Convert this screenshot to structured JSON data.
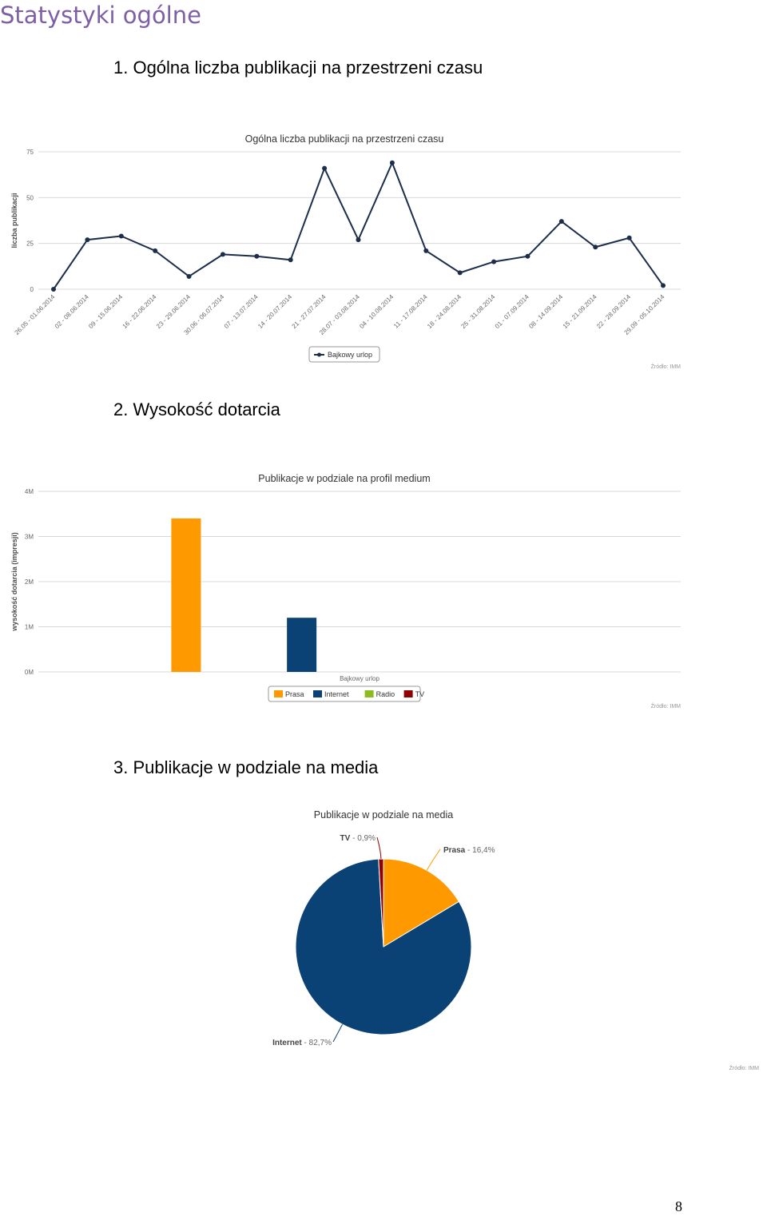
{
  "page_title": "Statystyki ogólne",
  "page_number": "8",
  "sections": [
    {
      "heading": "1. Ogólna liczba publikacji na przestrzeni czasu"
    },
    {
      "heading": "2. Wysokość dotarcia"
    },
    {
      "heading": "3. Publikacje w podziale na media"
    }
  ],
  "chart_data": [
    {
      "type": "line",
      "title": "Ogólna liczba publikacji na przestrzeni czasu",
      "xlabel": "",
      "ylabel": "liczba publikacji",
      "ylim": [
        0,
        75
      ],
      "yticks": [
        "0",
        "25",
        "50",
        "75"
      ],
      "categories": [
        "26.05 - 01.06.2014",
        "02 - 08.06.2014",
        "09 - 15.06.2014",
        "16 - 22.06.2014",
        "23 - 29.06.2014",
        "30.06 - 06.07.2014",
        "07 - 13.07.2014",
        "14 - 20.07.2014",
        "21 - 27.07.2014",
        "28.07 - 03.08.2014",
        "04 - 10.08.2014",
        "11 - 17.08.2014",
        "18 - 24.08.2014",
        "25 - 31.08.2014",
        "01 - 07.09.2014",
        "08 - 14.09.2014",
        "15 - 21.09.2014",
        "22 - 28.09.2014",
        "29.09 - 05.10.2014"
      ],
      "series": [
        {
          "name": "Bajkowy urlop",
          "color": "#1c2e4a",
          "values": [
            0,
            27,
            29,
            21,
            7,
            19,
            18,
            16,
            66,
            27,
            69,
            21,
            9,
            15,
            18,
            37,
            23,
            28,
            2
          ]
        }
      ],
      "grid": true,
      "legend_position": "bottom-center",
      "credit": "Źródło: IMM"
    },
    {
      "type": "bar",
      "title": "Publikacje w podziale na profil medium",
      "xlabel": "",
      "ylabel": "wysokość dotarcia (impresji)",
      "ylim": [
        0,
        4000000
      ],
      "yticks": [
        "0M",
        "1M",
        "2M",
        "3M",
        "4M"
      ],
      "categories": [
        "Bajkowy urlop"
      ],
      "series": [
        {
          "name": "Prasa",
          "color": "#ff9900",
          "values": [
            3400000
          ]
        },
        {
          "name": "Internet",
          "color": "#0b4275",
          "values": [
            1200000
          ]
        },
        {
          "name": "Radio",
          "color": "#8bbc21",
          "values": [
            0
          ]
        },
        {
          "name": "TV",
          "color": "#910000",
          "values": [
            0
          ]
        }
      ],
      "grid": true,
      "legend_position": "bottom-center",
      "credit": "Źródło: IMM"
    },
    {
      "type": "pie",
      "title": "Publikacje w podziale na media",
      "slices": [
        {
          "name": "Prasa",
          "value": 16.4,
          "label": "16,4%",
          "color": "#ff9900"
        },
        {
          "name": "Internet",
          "value": 82.7,
          "label": "82,7%",
          "color": "#0b4275"
        },
        {
          "name": "TV",
          "value": 0.9,
          "label": "0,9%",
          "color": "#910000"
        }
      ],
      "credit": "Źródło: IMM"
    }
  ]
}
